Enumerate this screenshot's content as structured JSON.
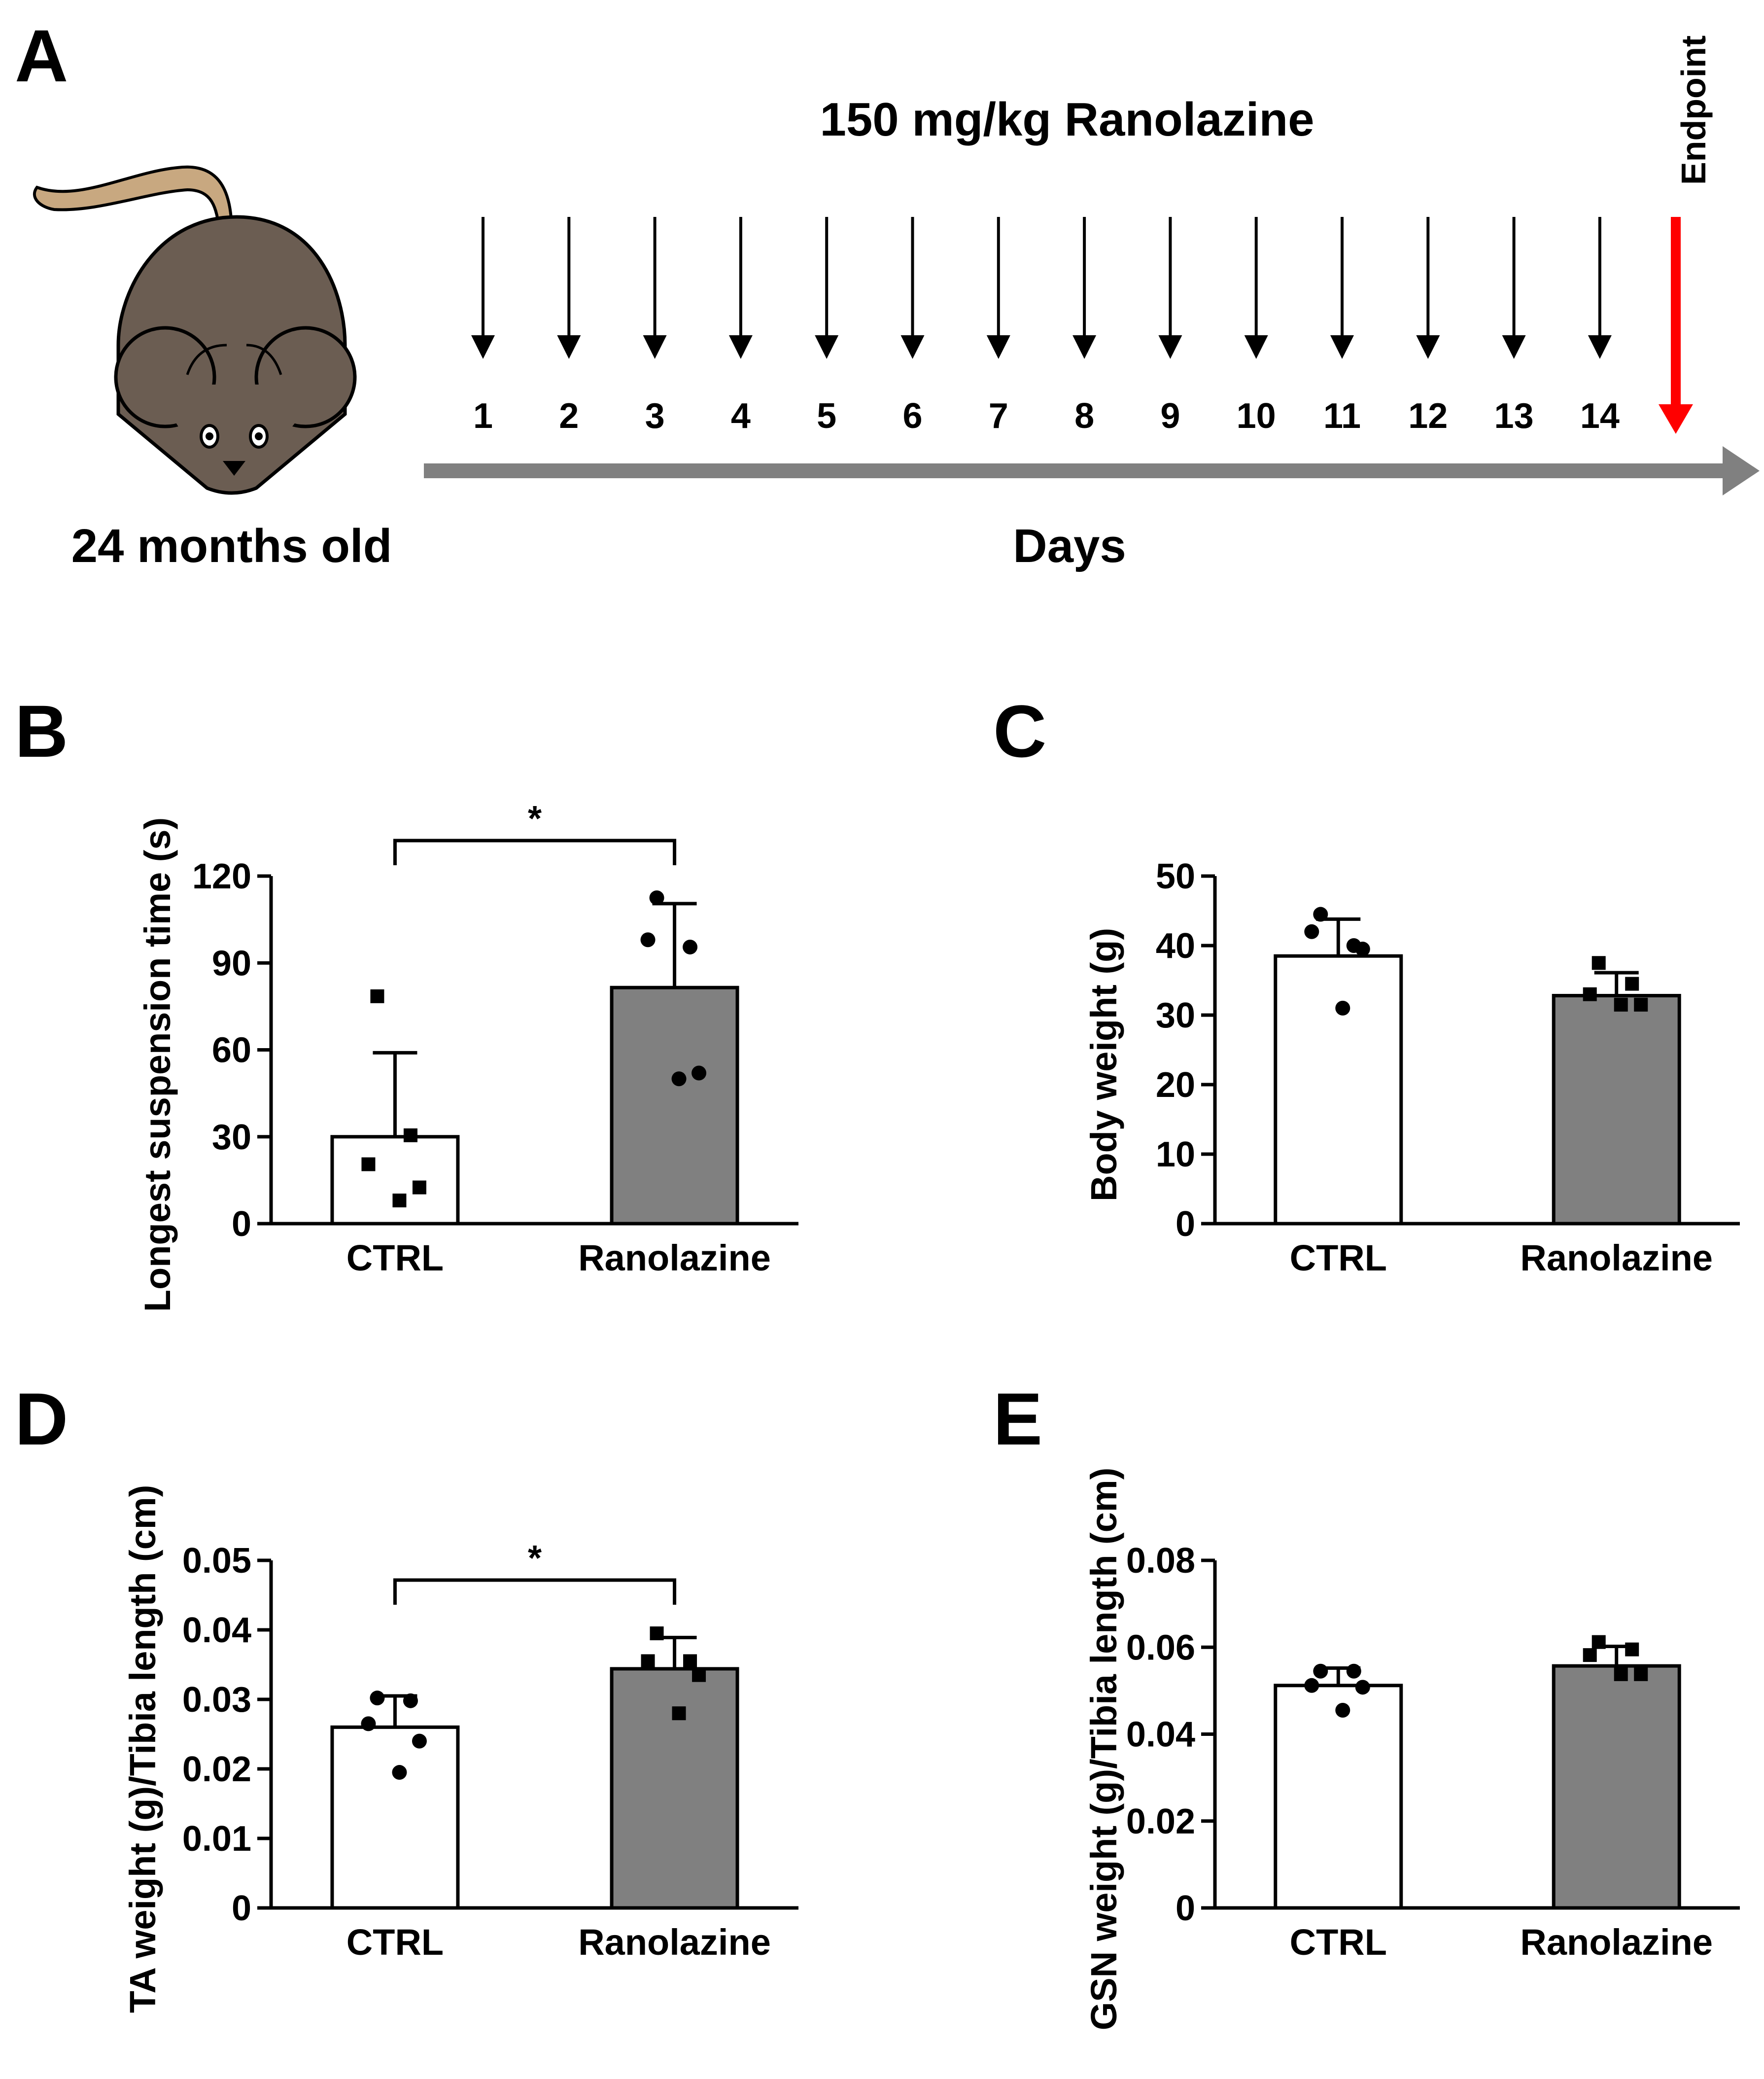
{
  "panel_a": {
    "letter": "A",
    "title": "150 mg/kg Ranolazine",
    "mouse_label": "24 months old",
    "axis_label": "Days",
    "endpoint_label": "Endpoint",
    "days": [
      "1",
      "2",
      "3",
      "4",
      "5",
      "6",
      "7",
      "8",
      "9",
      "10",
      "11",
      "12",
      "13",
      "14"
    ],
    "colors": {
      "endpoint": "#ff0000",
      "timeline": "#808080",
      "mouse_body": "#6b5d52",
      "mouse_tail": "#c8a880"
    }
  },
  "chart_data": [
    {
      "id": "B",
      "letter": "B",
      "type": "bar",
      "categories": [
        "CTRL",
        "Ranolazine"
      ],
      "values": [
        30,
        81.5
      ],
      "errors": [
        29,
        29
      ],
      "points": [
        [
          78.5,
          30.5,
          20.5,
          12.5,
          8
        ],
        [
          112.5,
          95.5,
          98,
          52,
          50
        ]
      ],
      "markers": [
        "square",
        "circle"
      ],
      "ylabel": "Longest suspension time (s)",
      "ylim": [
        0,
        120
      ],
      "yticks": [
        "0",
        "30",
        "60",
        "90",
        "120"
      ],
      "significance": "*",
      "bar_colors": [
        "#ffffff",
        "#808080"
      ]
    },
    {
      "id": "C",
      "letter": "C",
      "type": "bar",
      "categories": [
        "CTRL",
        "Ranolazine"
      ],
      "values": [
        38.5,
        32.8
      ],
      "errors": [
        5.3,
        3.3
      ],
      "points": [
        [
          44.5,
          40,
          42,
          39.5,
          31
        ],
        [
          37.5,
          34.5,
          33,
          31.5,
          31.5
        ]
      ],
      "markers": [
        "circle",
        "square"
      ],
      "ylabel": "Body weight (g)",
      "ylim": [
        0,
        50
      ],
      "yticks": [
        "0",
        "10",
        "20",
        "30",
        "40",
        "50"
      ],
      "significance": "",
      "bar_colors": [
        "#ffffff",
        "#808080"
      ]
    },
    {
      "id": "D",
      "letter": "D",
      "type": "bar",
      "categories": [
        "CTRL",
        "Ranolazine"
      ],
      "values": [
        0.026,
        0.0344
      ],
      "errors": [
        0.0045,
        0.0045
      ],
      "points": [
        [
          0.0302,
          0.0298,
          0.0265,
          0.024,
          0.0195
        ],
        [
          0.0395,
          0.0355,
          0.0355,
          0.0335,
          0.028
        ]
      ],
      "markers": [
        "circle",
        "square"
      ],
      "ylabel": "TA weight (g)/Tibia length (cm)",
      "ylim": [
        0,
        0.05
      ],
      "yticks": [
        "0",
        "0.01",
        "0.02",
        "0.03",
        "0.04",
        "0.05"
      ],
      "significance": "*",
      "bar_colors": [
        "#ffffff",
        "#808080"
      ]
    },
    {
      "id": "E",
      "letter": "E",
      "type": "bar",
      "categories": [
        "CTRL",
        "Ranolazine"
      ],
      "values": [
        0.0512,
        0.0557
      ],
      "errors": [
        0.004,
        0.0045
      ],
      "points": [
        [
          0.0545,
          0.0545,
          0.0512,
          0.0508,
          0.0455
        ],
        [
          0.0612,
          0.0595,
          0.0582,
          0.0538,
          0.0538
        ]
      ],
      "markers": [
        "circle",
        "square"
      ],
      "ylabel": "GSN weight (g)/Tibia length (cm)",
      "ylim": [
        0,
        0.08
      ],
      "yticks": [
        "0",
        "0.02",
        "0.04",
        "0.06",
        "0.08"
      ],
      "significance": "",
      "bar_colors": [
        "#ffffff",
        "#808080"
      ]
    }
  ]
}
